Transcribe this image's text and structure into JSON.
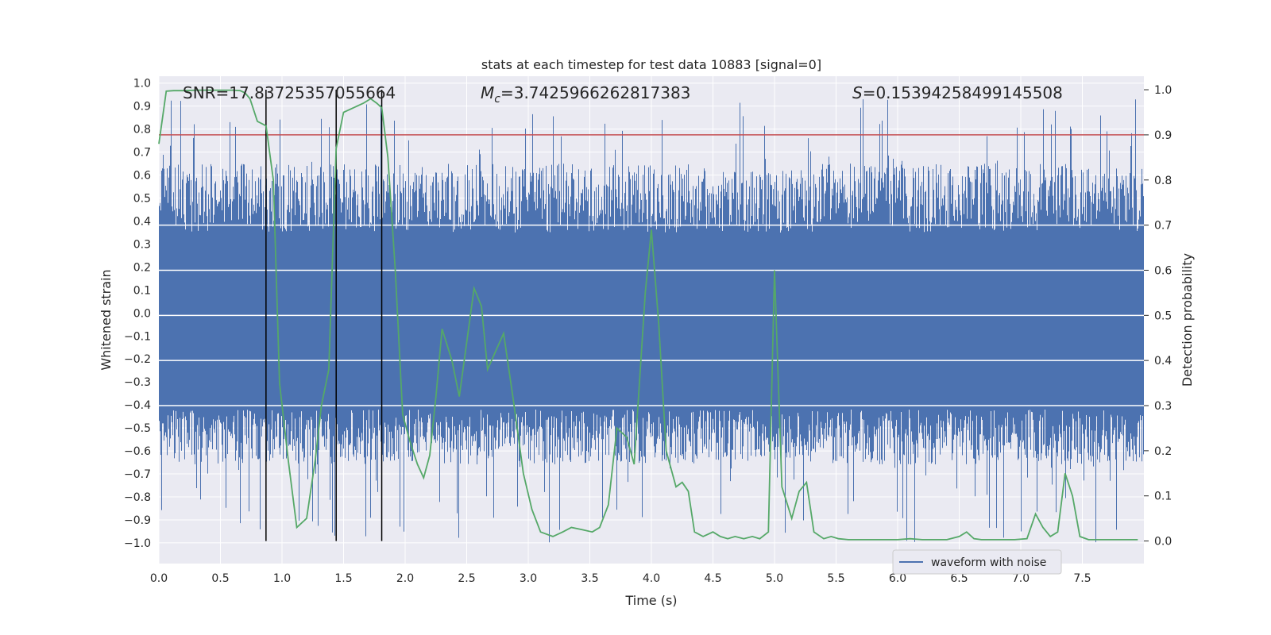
{
  "chart_data": {
    "type": "line",
    "title": "stats at each timestep for test data 10883 [signal=0]",
    "xlabel": "Time (s)",
    "ylabel_left": "Whitened strain",
    "ylabel_right": "Detection probability",
    "xlim": [
      0,
      8
    ],
    "ylim_left": [
      -1.09,
      1.03
    ],
    "ylim_right": [
      -0.05,
      1.03
    ],
    "x_ticks": [
      "0.0",
      "0.5",
      "1.0",
      "1.5",
      "2.0",
      "2.5",
      "3.0",
      "3.5",
      "4.0",
      "4.5",
      "5.0",
      "5.5",
      "6.0",
      "6.5",
      "7.0",
      "7.5"
    ],
    "y_left_ticks": [
      "1.0",
      "0.9",
      "0.8",
      "0.7",
      "0.6",
      "0.5",
      "0.4",
      "0.3",
      "0.2",
      "0.1",
      "0.0",
      "-0.1",
      "-0.2",
      "-0.3",
      "-0.4",
      "-0.5",
      "-0.6",
      "-0.7",
      "-0.8",
      "-0.9",
      "-1.0"
    ],
    "y_right_ticks": [
      "1.0",
      "0.9",
      "0.8",
      "0.7",
      "0.6",
      "0.5",
      "0.4",
      "0.3",
      "0.2",
      "0.1",
      "0.0"
    ],
    "annotations": {
      "snr": "SNR=17.83725357055664",
      "mc_prefix": "M",
      "mc_sub": "c",
      "mc_value": "=3.7425966262817383",
      "s_prefix": "S",
      "s_value": "=0.15394258499145508"
    },
    "threshold_probability": 0.9,
    "vertical_markers": [
      0.87,
      1.44,
      1.81
    ],
    "waveform_band": {
      "core_low": -0.42,
      "core_high": 0.35,
      "typical_low": -0.66,
      "typical_high": 0.65,
      "peak_low": -1.0,
      "peak_high": 0.93
    },
    "legend": {
      "label": "waveform with noise",
      "placement": "lower-right"
    },
    "series": [
      {
        "name": "detection probability",
        "color": "#55a868",
        "x": [
          0.0,
          0.06,
          0.12,
          0.2,
          0.3,
          0.4,
          0.5,
          0.6,
          0.66,
          0.7,
          0.74,
          0.8,
          0.87,
          0.93,
          0.98,
          1.05,
          1.12,
          1.2,
          1.27,
          1.32,
          1.38,
          1.44,
          1.5,
          1.58,
          1.66,
          1.72,
          1.77,
          1.81,
          1.86,
          1.92,
          1.98,
          2.04,
          2.1,
          2.15,
          2.2,
          2.25,
          2.3,
          2.38,
          2.44,
          2.5,
          2.56,
          2.62,
          2.67,
          2.75,
          2.8,
          2.88,
          2.96,
          3.03,
          3.1,
          3.2,
          3.28,
          3.35,
          3.44,
          3.52,
          3.58,
          3.65,
          3.72,
          3.8,
          3.86,
          3.95,
          4.0,
          4.06,
          4.12,
          4.2,
          4.25,
          4.3,
          4.35,
          4.42,
          4.5,
          4.56,
          4.62,
          4.68,
          4.75,
          4.82,
          4.88,
          4.95,
          5.0,
          5.06,
          5.14,
          5.2,
          5.26,
          5.32,
          5.4,
          5.46,
          5.52,
          5.6,
          5.7,
          5.8,
          5.9,
          6.0,
          6.1,
          6.2,
          6.3,
          6.4,
          6.5,
          6.56,
          6.62,
          6.68,
          6.75,
          6.85,
          6.95,
          7.05,
          7.12,
          7.18,
          7.24,
          7.3,
          7.36,
          7.42,
          7.48,
          7.55,
          7.62,
          7.7,
          7.8,
          7.95
        ],
        "values": [
          0.88,
          0.997,
          0.998,
          0.998,
          0.999,
          0.999,
          0.999,
          0.999,
          0.998,
          0.993,
          0.98,
          0.93,
          0.92,
          0.8,
          0.35,
          0.18,
          0.03,
          0.05,
          0.18,
          0.3,
          0.38,
          0.87,
          0.95,
          0.96,
          0.97,
          0.98,
          0.97,
          0.96,
          0.85,
          0.6,
          0.28,
          0.22,
          0.17,
          0.14,
          0.19,
          0.32,
          0.47,
          0.4,
          0.32,
          0.44,
          0.56,
          0.52,
          0.38,
          0.43,
          0.46,
          0.31,
          0.15,
          0.07,
          0.02,
          0.01,
          0.02,
          0.03,
          0.025,
          0.02,
          0.03,
          0.08,
          0.25,
          0.23,
          0.17,
          0.55,
          0.69,
          0.48,
          0.2,
          0.12,
          0.13,
          0.11,
          0.02,
          0.01,
          0.02,
          0.01,
          0.005,
          0.01,
          0.005,
          0.01,
          0.005,
          0.02,
          0.6,
          0.12,
          0.05,
          0.11,
          0.13,
          0.02,
          0.005,
          0.01,
          0.005,
          0.003,
          0.003,
          0.003,
          0.003,
          0.003,
          0.005,
          0.003,
          0.003,
          0.003,
          0.01,
          0.02,
          0.005,
          0.003,
          0.003,
          0.003,
          0.003,
          0.005,
          0.06,
          0.03,
          0.01,
          0.02,
          0.15,
          0.1,
          0.01,
          0.003,
          0.003,
          0.003,
          0.003,
          0.003
        ]
      }
    ]
  },
  "colors": {
    "plot_bg": "#eaeaf2",
    "grid": "#ffffff",
    "waveform": "#4c72b0",
    "probability": "#55a868",
    "threshold": "#c44e52",
    "marker": "#000000"
  }
}
